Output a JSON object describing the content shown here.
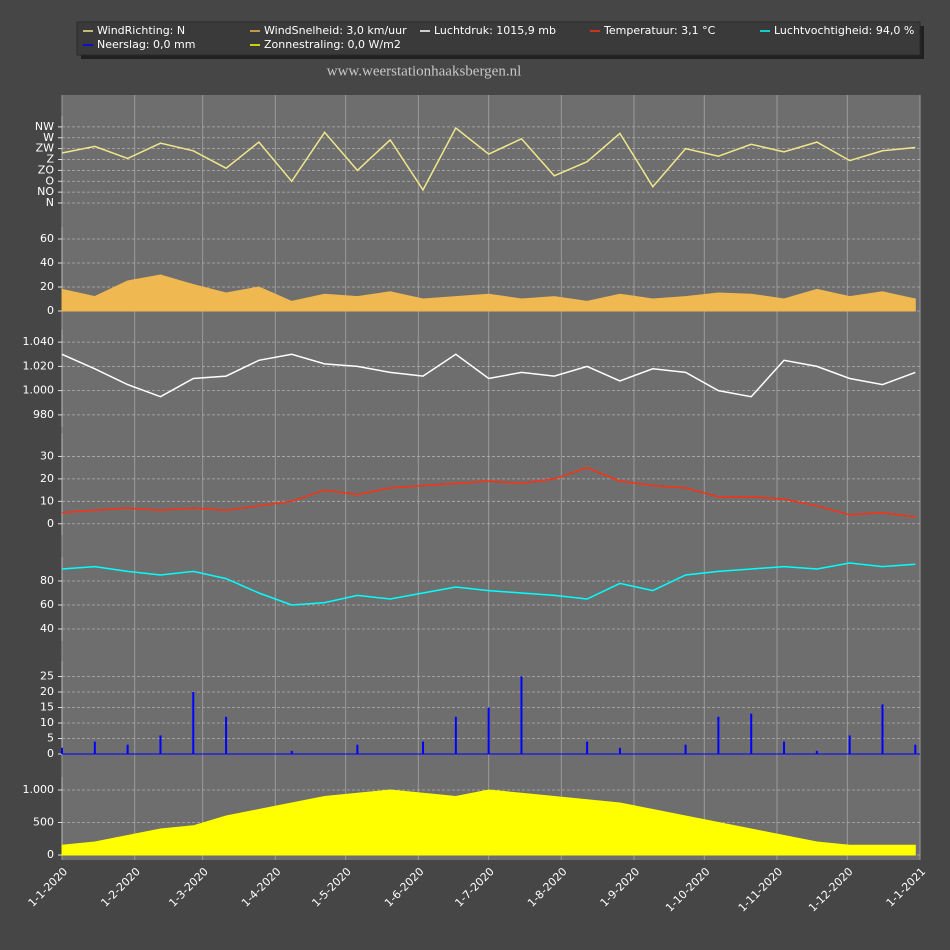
{
  "watermark": "www.weerstationhaaksbergen.nl",
  "legend": [
    {
      "label": "WindRichting: N",
      "color": "#f0e68c"
    },
    {
      "label": "WindSnelheid: 3,0 km/uur",
      "color": "#f0b850"
    },
    {
      "label": "Luchtdruk: 1015,9 mb",
      "color": "#ffffff"
    },
    {
      "label": "Temperatuur: 3,1 °C",
      "color": "#ff3010"
    },
    {
      "label": "Luchtvochtigheid: 94,0 %",
      "color": "#00ffff"
    },
    {
      "label": "Neerslag: 0,0 mm",
      "color": "#0000ff"
    },
    {
      "label": "Zonnestraling: 0,0 W/m2",
      "color": "#ffff00"
    }
  ],
  "x_axis": {
    "xlim": [
      "2020-01-01",
      "2021-01-01"
    ],
    "xticks": [
      {
        "value": "2020-01-01",
        "label": "1-1-2020"
      },
      {
        "value": "2020-02-01",
        "label": "1-2-2020"
      },
      {
        "value": "2020-03-01",
        "label": "1-3-2020"
      },
      {
        "value": "2020-04-01",
        "label": "1-4-2020"
      },
      {
        "value": "2020-05-01",
        "label": "1-5-2020"
      },
      {
        "value": "2020-06-01",
        "label": "1-6-2020"
      },
      {
        "value": "2020-07-01",
        "label": "1-7-2020"
      },
      {
        "value": "2020-08-01",
        "label": "1-8-2020"
      },
      {
        "value": "2020-09-01",
        "label": "1-9-2020"
      },
      {
        "value": "2020-10-01",
        "label": "1-10-2020"
      },
      {
        "value": "2020-11-01",
        "label": "1-11-2020"
      },
      {
        "value": "2020-12-01",
        "label": "1-12-2020"
      },
      {
        "value": "2021-01-01",
        "label": "1-1-2021"
      }
    ],
    "x": [
      "2020-01-01",
      "2020-01-15",
      "2020-01-29",
      "2020-02-12",
      "2020-02-26",
      "2020-03-11",
      "2020-03-25",
      "2020-04-08",
      "2020-04-22",
      "2020-05-06",
      "2020-05-20",
      "2020-06-03",
      "2020-06-17",
      "2020-07-01",
      "2020-07-15",
      "2020-07-29",
      "2020-08-12",
      "2020-08-26",
      "2020-09-09",
      "2020-09-23",
      "2020-10-07",
      "2020-10-21",
      "2020-11-04",
      "2020-11-18",
      "2020-12-02",
      "2020-12-16",
      "2020-12-30"
    ]
  },
  "chart_data": [
    {
      "type": "line",
      "color": "#f0e68c",
      "ylim": [
        0,
        8
      ],
      "yticks": [
        {
          "value": 0,
          "label": "N"
        },
        {
          "value": 1,
          "label": "NO"
        },
        {
          "value": 2,
          "label": "O"
        },
        {
          "value": 3,
          "label": "ZO"
        },
        {
          "value": 4,
          "label": "Z"
        },
        {
          "value": 5,
          "label": "ZW"
        },
        {
          "value": 6,
          "label": "W"
        },
        {
          "value": 7,
          "label": "NW"
        }
      ],
      "values": [
        4.6,
        5.2,
        4.1,
        5.5,
        4.8,
        3.2,
        5.6,
        2.0,
        6.5,
        3.0,
        5.8,
        1.2,
        6.9,
        4.5,
        5.9,
        2.5,
        3.8,
        6.4,
        1.5,
        5.0,
        4.3,
        5.4,
        4.7,
        5.6,
        3.9,
        4.8,
        5.1
      ]
    },
    {
      "type": "area",
      "color": "#f0b850",
      "ylim": [
        0,
        70
      ],
      "yticks": [
        0,
        20,
        40,
        60
      ],
      "values": [
        18,
        12,
        25,
        30,
        22,
        15,
        20,
        8,
        14,
        12,
        16,
        10,
        12,
        14,
        10,
        12,
        8,
        14,
        10,
        12,
        15,
        14,
        10,
        18,
        12,
        16,
        10
      ]
    },
    {
      "type": "line",
      "color": "#ffffff",
      "ylim": [
        970,
        1050
      ],
      "yticks": [
        980,
        {
          "value": 1000,
          "label": "1.000"
        },
        {
          "value": 1020,
          "label": "1.020"
        },
        {
          "value": 1040,
          "label": "1.040"
        }
      ],
      "values": [
        1030,
        1018,
        1005,
        995,
        1010,
        1012,
        1025,
        1030,
        1022,
        1020,
        1015,
        1012,
        1030,
        1010,
        1015,
        1012,
        1020,
        1008,
        1018,
        1015,
        1000,
        995,
        1025,
        1020,
        1010,
        1005,
        1015
      ]
    },
    {
      "type": "line",
      "color": "#ff3010",
      "ylim": [
        -5,
        40
      ],
      "yticks": [
        0,
        10,
        20,
        30
      ],
      "values": [
        5,
        6,
        7,
        6,
        7,
        6,
        8,
        10,
        15,
        13,
        16,
        17,
        18,
        19,
        18,
        20,
        25,
        19,
        17,
        16,
        12,
        12,
        11,
        8,
        4,
        5,
        3
      ]
    },
    {
      "type": "line",
      "color": "#00ffff",
      "ylim": [
        30,
        100
      ],
      "yticks": [
        40,
        60,
        80
      ],
      "values": [
        90,
        92,
        88,
        85,
        88,
        82,
        70,
        60,
        62,
        68,
        65,
        70,
        75,
        72,
        70,
        68,
        65,
        78,
        72,
        85,
        88,
        90,
        92,
        90,
        95,
        92,
        94
      ]
    },
    {
      "type": "bar",
      "color": "#0000ff",
      "ylim": [
        0,
        30
      ],
      "yticks": [
        0,
        5,
        10,
        15,
        20,
        25
      ],
      "values": [
        2,
        4,
        3,
        6,
        20,
        12,
        0,
        1,
        0,
        3,
        0,
        4,
        12,
        15,
        25,
        0,
        4,
        2,
        0,
        3,
        12,
        13,
        4,
        1,
        6,
        16,
        3
      ]
    },
    {
      "type": "area",
      "color": "#ffff00",
      "ylim": [
        0,
        1200
      ],
      "yticks": [
        0,
        500,
        {
          "value": 1000,
          "label": "1.000"
        }
      ],
      "values": [
        150,
        200,
        300,
        400,
        450,
        600,
        700,
        800,
        900,
        950,
        1000,
        950,
        900,
        1000,
        950,
        900,
        850,
        800,
        700,
        600,
        500,
        400,
        300,
        200,
        150,
        150,
        150
      ]
    }
  ]
}
